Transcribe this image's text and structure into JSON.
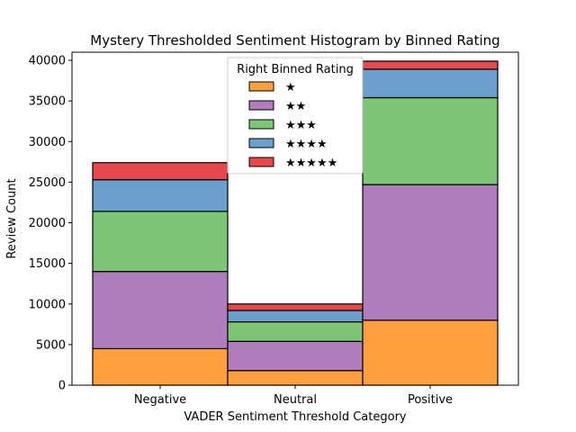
{
  "chart_data": {
    "type": "bar",
    "stacked": true,
    "title": "Mystery Thresholded Sentiment Histogram by Binned Rating",
    "xlabel": "VADER Sentiment Threshold Category",
    "ylabel": "Review Count",
    "categories": [
      "Negative",
      "Neutral",
      "Positive"
    ],
    "ylim": [
      0,
      41000
    ],
    "yticks": [
      0,
      5000,
      10000,
      15000,
      20000,
      25000,
      30000,
      35000,
      40000
    ],
    "legend": {
      "title": "Right Binned Rating",
      "placement": "upper center"
    },
    "grid": false,
    "series": [
      {
        "name": "★",
        "color": "#ff9f40",
        "values": [
          4500,
          1800,
          8000
        ]
      },
      {
        "name": "★★",
        "color": "#b07cbb",
        "values": [
          9500,
          3600,
          16700
        ]
      },
      {
        "name": "★★★",
        "color": "#7ec676",
        "values": [
          7400,
          2400,
          10700
        ]
      },
      {
        "name": "★★★★",
        "color": "#6b9fcc",
        "values": [
          3900,
          1400,
          3500
        ]
      },
      {
        "name": "★★★★★",
        "color": "#e5484d",
        "values": [
          2100,
          800,
          1000
        ]
      }
    ]
  }
}
